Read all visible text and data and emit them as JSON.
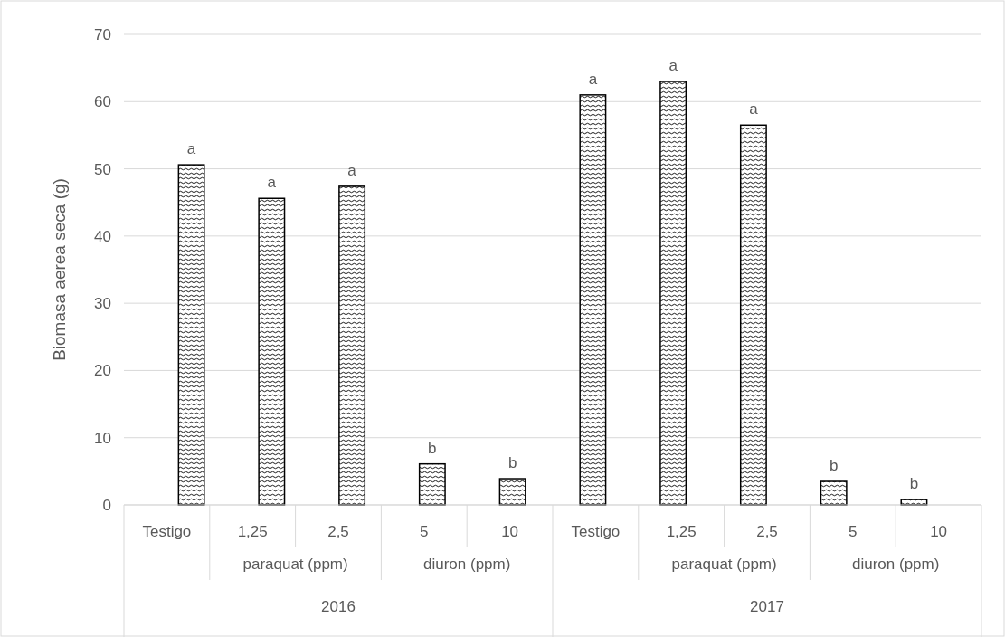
{
  "chart_data": {
    "type": "bar",
    "ylabel": "Biomasa aerea  seca (g)",
    "categories": [
      "Testigo",
      "1,25",
      "2,5",
      "5",
      "10",
      "Testigo",
      "1,25",
      "2,5",
      "5",
      "10"
    ],
    "values": [
      50.6,
      45.6,
      47.4,
      6.1,
      3.9,
      61,
      63,
      56.5,
      3.5,
      0.8
    ],
    "value_labels": [
      "a",
      "a",
      "a",
      "b",
      "b",
      "a",
      "a",
      "a",
      "b",
      "b"
    ],
    "color": "#000000",
    "ylim": [
      0,
      70
    ],
    "yticks": [
      0,
      10,
      20,
      30,
      40,
      50,
      60,
      70
    ],
    "grid": "y",
    "annotations": [
      "paraquat (ppm)",
      "diuron (ppm)",
      "paraquat (ppm)",
      "diuron (ppm)",
      "2016",
      "2017"
    ]
  }
}
